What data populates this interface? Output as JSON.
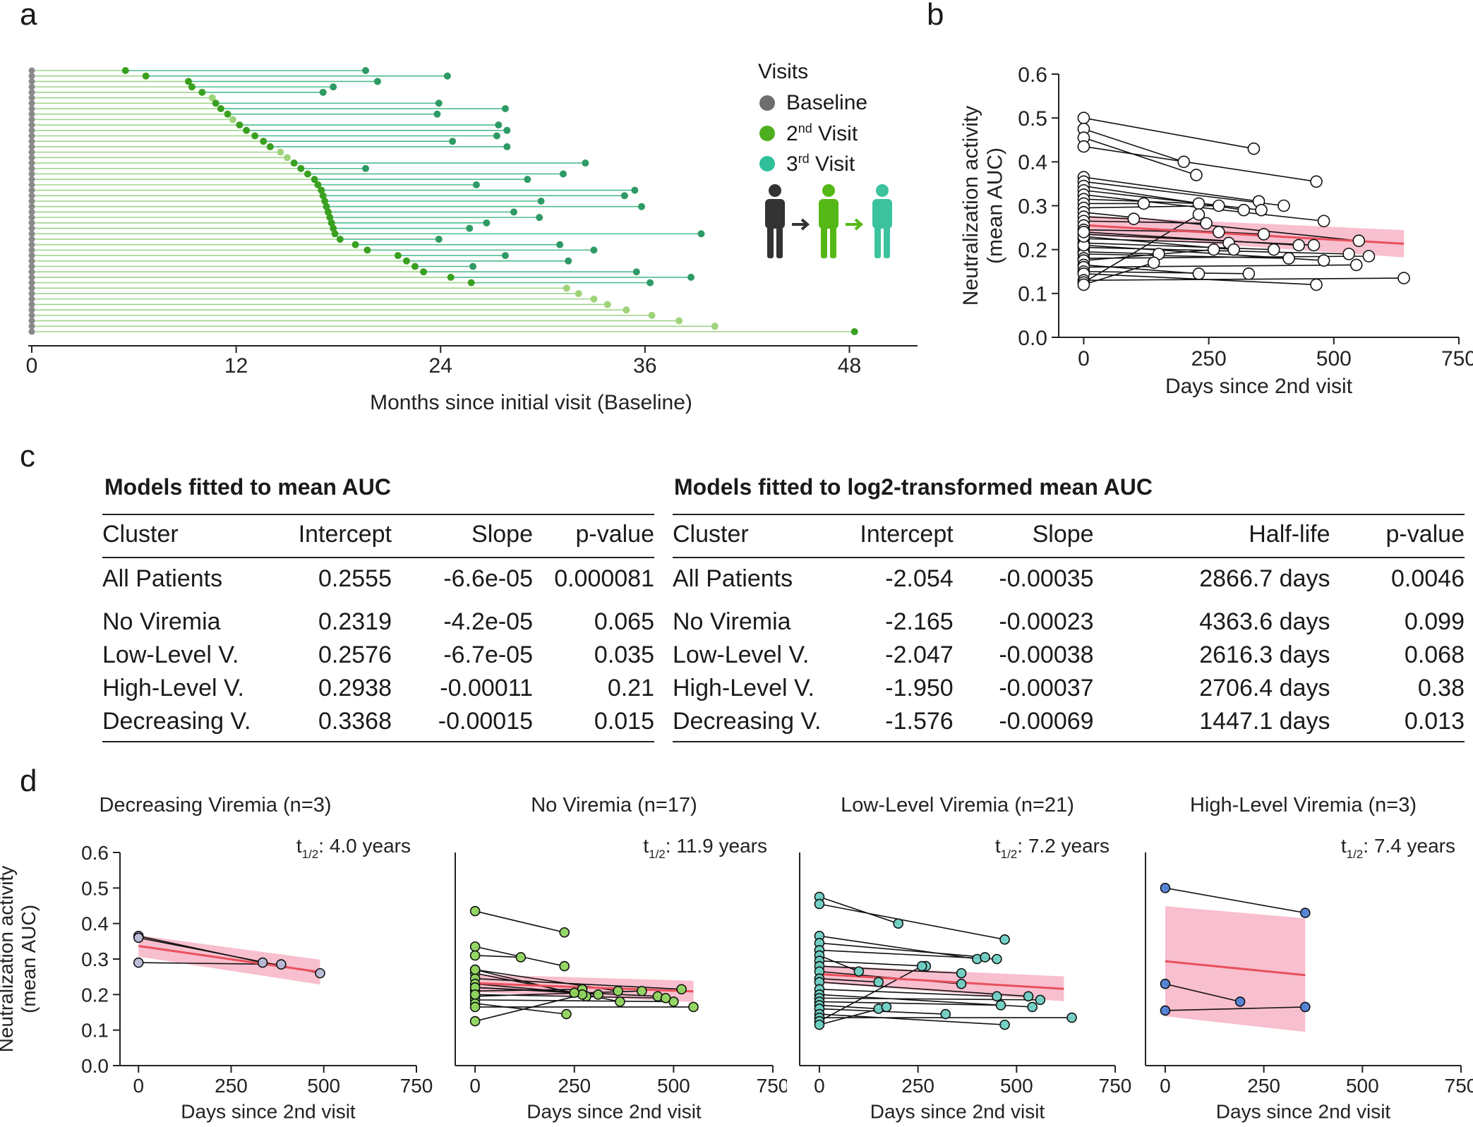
{
  "panel_letters": {
    "a": "a",
    "b": "b",
    "c": "c",
    "d": "d"
  },
  "legend": {
    "title": "Visits",
    "items": [
      {
        "label": "Baseline",
        "color": "#6e6e6e"
      },
      {
        "label": "2nd Visit",
        "color": "#4fae1f"
      },
      {
        "label": "3rd Visit",
        "color": "#2fc09a"
      }
    ]
  },
  "colors": {
    "baseline": "#8a8a8a",
    "second_visit": "#3aa020",
    "second_visit_light": "#9fd37a",
    "third_visit": "#2e9a64",
    "line_to_second": "#9fd48a",
    "line_to_third": "#4dbb8e",
    "fit_line": "#e8505b",
    "ci_band": "#f7b4c6",
    "group_decreasing": "#b9bcd8",
    "group_no_viremia": "#8fd65e",
    "group_low_level": "#6fd0c4",
    "group_high_level": "#4f7fd6"
  },
  "tables": {
    "left": {
      "title": "Models fitted to mean AUC",
      "headers": [
        "Cluster",
        "Intercept",
        "Slope",
        "p-value"
      ],
      "rows": [
        [
          "All Patients",
          "0.2555",
          "-6.6e-05",
          "0.000081"
        ],
        [
          "No Viremia",
          "0.2319",
          "-4.2e-05",
          "0.065"
        ],
        [
          "Low-Level V.",
          "0.2576",
          "-6.7e-05",
          "0.035"
        ],
        [
          "High-Level V.",
          "0.2938",
          "-0.00011",
          "0.21"
        ],
        [
          "Decreasing V.",
          "0.3368",
          "-0.00015",
          "0.015"
        ]
      ]
    },
    "right": {
      "title": "Models fitted to log2-transformed mean AUC",
      "headers": [
        "Cluster",
        "Intercept",
        "Slope",
        "Half-life",
        "p-value"
      ],
      "rows": [
        [
          "All Patients",
          "-2.054",
          "-0.00035",
          "2866.7 days",
          "0.0046"
        ],
        [
          "No Viremia",
          "-2.165",
          "-0.00023",
          "4363.6 days",
          "0.099"
        ],
        [
          "Low-Level V.",
          "-2.047",
          "-0.00038",
          "2616.3 days",
          "0.068"
        ],
        [
          "High-Level V.",
          "-1.950",
          "-0.00037",
          "2706.4 days",
          "0.38"
        ],
        [
          "Decreasing V.",
          "-1.576",
          "-0.00069",
          "1447.1 days",
          "0.013"
        ]
      ]
    }
  },
  "chart_data": [
    {
      "id": "a",
      "type": "timeline",
      "xlabel": "Months since initial visit (Baseline)",
      "xlim": [
        0,
        52
      ],
      "xticks": [
        0,
        12,
        24,
        36,
        48
      ],
      "patients": [
        {
          "v2": 5.5,
          "v3": 19.6
        },
        {
          "v2": 6.7,
          "v3": 24.4
        },
        {
          "v2": 9.2,
          "v3": 20.3
        },
        {
          "v2": 9.4,
          "v3": 17.7
        },
        {
          "v2": 10.0,
          "v3": 17.1
        },
        {
          "v2": 10.6,
          "v3": null
        },
        {
          "v2": 10.8,
          "v3": 23.9
        },
        {
          "v2": 11.1,
          "v3": 27.8
        },
        {
          "v2": 11.5,
          "v3": 23.8
        },
        {
          "v2": 11.8,
          "v3": null
        },
        {
          "v2": 12.2,
          "v3": 27.4
        },
        {
          "v2": 12.6,
          "v3": 27.9
        },
        {
          "v2": 13.1,
          "v3": 27.3
        },
        {
          "v2": 13.6,
          "v3": 24.7
        },
        {
          "v2": 14.0,
          "v3": 27.9
        },
        {
          "v2": 14.6,
          "v3": null
        },
        {
          "v2": 15.0,
          "v3": null
        },
        {
          "v2": 15.4,
          "v3": 32.5
        },
        {
          "v2": 15.8,
          "v3": 19.6
        },
        {
          "v2": 16.2,
          "v3": 31.2
        },
        {
          "v2": 16.6,
          "v3": 29.1
        },
        {
          "v2": 16.8,
          "v3": 26.1
        },
        {
          "v2": 17.0,
          "v3": 35.4
        },
        {
          "v2": 17.1,
          "v3": 34.8
        },
        {
          "v2": 17.2,
          "v3": 29.9
        },
        {
          "v2": 17.3,
          "v3": 35.8
        },
        {
          "v2": 17.4,
          "v3": 28.3
        },
        {
          "v2": 17.5,
          "v3": 29.8
        },
        {
          "v2": 17.6,
          "v3": 26.7
        },
        {
          "v2": 17.7,
          "v3": 25.7
        },
        {
          "v2": 17.8,
          "v3": 39.3
        },
        {
          "v2": 18.1,
          "v3": 23.9
        },
        {
          "v2": 19.0,
          "v3": 31.0
        },
        {
          "v2": 19.7,
          "v3": 33.0
        },
        {
          "v2": 21.5,
          "v3": 27.8
        },
        {
          "v2": 22.0,
          "v3": 31.5
        },
        {
          "v2": 22.5,
          "v3": 25.9
        },
        {
          "v2": 23.0,
          "v3": 35.5
        },
        {
          "v2": 24.6,
          "v3": 38.7
        },
        {
          "v2": 25.8,
          "v3": 36.3
        },
        {
          "v2": 31.4,
          "v3": null
        },
        {
          "v2": 32.1,
          "v3": null
        },
        {
          "v2": 33.0,
          "v3": null
        },
        {
          "v2": 33.8,
          "v3": null
        },
        {
          "v2": 34.9,
          "v3": null
        },
        {
          "v2": 36.4,
          "v3": null
        },
        {
          "v2": 38.0,
          "v3": null
        },
        {
          "v2": 40.1,
          "v3": null
        },
        {
          "v2": 48.3,
          "v3": null
        }
      ]
    },
    {
      "id": "b",
      "type": "scatter",
      "xlabel": "Days since 2nd visit",
      "ylabel": "Neutralization activity (mean AUC)",
      "xlim": [
        -50,
        750
      ],
      "ylim": [
        0.0,
        0.6
      ],
      "xticks": [
        0,
        250,
        500,
        750
      ],
      "yticks": [
        "0.0",
        "0.1",
        "0.2",
        "0.3",
        "0.4",
        "0.5",
        "0.6"
      ],
      "fit": {
        "intercept": 0.2555,
        "slope": -6.6e-05,
        "x_end": 640,
        "ci_start": 0.022,
        "ci_end": 0.031
      },
      "pairs": [
        [
          [
            0,
            0.5
          ],
          [
            340,
            0.43
          ]
        ],
        [
          [
            0,
            0.475
          ],
          [
            200,
            0.4
          ]
        ],
        [
          [
            0,
            0.455
          ],
          [
            225,
            0.37
          ]
        ],
        [
          [
            0,
            0.435
          ],
          [
            465,
            0.355
          ]
        ],
        [
          [
            0,
            0.365
          ],
          [
            350,
            0.31
          ]
        ],
        [
          [
            0,
            0.355
          ],
          [
            400,
            0.3
          ]
        ],
        [
          [
            0,
            0.345
          ],
          [
            320,
            0.29
          ]
        ],
        [
          [
            0,
            0.335
          ],
          [
            355,
            0.29
          ]
        ],
        [
          [
            0,
            0.325
          ],
          [
            480,
            0.265
          ]
        ],
        [
          [
            0,
            0.315
          ],
          [
            230,
            0.305
          ]
        ],
        [
          [
            0,
            0.305
          ],
          [
            120,
            0.305
          ]
        ],
        [
          [
            0,
            0.295
          ],
          [
            270,
            0.3
          ]
        ],
        [
          [
            0,
            0.285
          ],
          [
            550,
            0.22
          ]
        ],
        [
          [
            0,
            0.275
          ],
          [
            100,
            0.27
          ]
        ],
        [
          [
            0,
            0.265
          ],
          [
            245,
            0.26
          ]
        ],
        [
          [
            0,
            0.255
          ],
          [
            360,
            0.235
          ]
        ],
        [
          [
            0,
            0.245
          ],
          [
            270,
            0.24
          ]
        ],
        [
          [
            0,
            0.235
          ],
          [
            460,
            0.21
          ]
        ],
        [
          [
            0,
            0.225
          ],
          [
            290,
            0.215
          ]
        ],
        [
          [
            0,
            0.215
          ],
          [
            380,
            0.2
          ]
        ],
        [
          [
            0,
            0.205
          ],
          [
            530,
            0.19
          ]
        ],
        [
          [
            0,
            0.195
          ],
          [
            150,
            0.19
          ]
        ],
        [
          [
            0,
            0.19
          ],
          [
            410,
            0.18
          ]
        ],
        [
          [
            0,
            0.18
          ],
          [
            570,
            0.185
          ]
        ],
        [
          [
            0,
            0.175
          ],
          [
            260,
            0.2
          ]
        ],
        [
          [
            0,
            0.165
          ],
          [
            230,
            0.145
          ]
        ],
        [
          [
            0,
            0.16
          ],
          [
            545,
            0.165
          ]
        ],
        [
          [
            0,
            0.15
          ],
          [
            330,
            0.145
          ]
        ],
        [
          [
            0,
            0.145
          ],
          [
            465,
            0.12
          ]
        ],
        [
          [
            0,
            0.13
          ],
          [
            640,
            0.135
          ]
        ],
        [
          [
            0,
            0.125
          ],
          [
            230,
            0.28
          ]
        ],
        [
          [
            0,
            0.12
          ],
          [
            140,
            0.17
          ]
        ],
        [
          [
            0,
            0.21
          ],
          [
            480,
            0.175
          ]
        ],
        [
          [
            0,
            0.23
          ],
          [
            300,
            0.2
          ]
        ],
        [
          [
            0,
            0.24
          ],
          [
            430,
            0.21
          ]
        ]
      ]
    },
    {
      "id": "d1",
      "type": "scatter",
      "title": "Decreasing Viremia (n=3)",
      "annotation": "4.0 years",
      "group_color": "#b9bcd8",
      "xlim": [
        -50,
        750
      ],
      "ylim": [
        0.0,
        0.6
      ],
      "xticks": [
        0,
        250,
        500,
        750
      ],
      "yticks": [
        "0.0",
        "0.1",
        "0.2",
        "0.3",
        "0.4",
        "0.5",
        "0.6"
      ],
      "ylabel": "Neutralization activity (mean AUC)",
      "xlabel": "Days since 2nd visit",
      "fit": {
        "intercept": 0.3368,
        "slope": -0.00015,
        "x_end": 490,
        "ci_start": 0.03,
        "ci_end": 0.035
      },
      "pairs": [
        [
          [
            0,
            0.365
          ],
          [
            335,
            0.29
          ]
        ],
        [
          [
            0,
            0.29
          ],
          [
            385,
            0.285
          ]
        ],
        [
          [
            0,
            0.36
          ],
          [
            490,
            0.26
          ]
        ]
      ]
    },
    {
      "id": "d2",
      "type": "scatter",
      "title": "No Viremia (n=17)",
      "annotation": "11.9 years",
      "group_color": "#8fd65e",
      "xlim": [
        -50,
        750
      ],
      "ylim": [
        0.0,
        0.6
      ],
      "xticks": [
        0,
        250,
        500,
        750
      ],
      "xlabel": "Days since 2nd visit",
      "fit": {
        "intercept": 0.2319,
        "slope": -4.2e-05,
        "x_end": 550,
        "ci_start": 0.025,
        "ci_end": 0.03
      },
      "pairs": [
        [
          [
            0,
            0.435
          ],
          [
            225,
            0.375
          ]
        ],
        [
          [
            0,
            0.335
          ],
          [
            225,
            0.28
          ]
        ],
        [
          [
            0,
            0.31
          ],
          [
            115,
            0.305
          ]
        ],
        [
          [
            0,
            0.27
          ],
          [
            280,
            0.195
          ]
        ],
        [
          [
            0,
            0.26
          ],
          [
            365,
            0.18
          ]
        ],
        [
          [
            0,
            0.245
          ],
          [
            520,
            0.215
          ]
        ],
        [
          [
            0,
            0.23
          ],
          [
            310,
            0.2
          ]
        ],
        [
          [
            0,
            0.22
          ],
          [
            460,
            0.195
          ]
        ],
        [
          [
            0,
            0.21
          ],
          [
            270,
            0.215
          ]
        ],
        [
          [
            0,
            0.195
          ],
          [
            420,
            0.21
          ]
        ],
        [
          [
            0,
            0.185
          ],
          [
            500,
            0.18
          ]
        ],
        [
          [
            0,
            0.175
          ],
          [
            230,
            0.145
          ]
        ],
        [
          [
            0,
            0.165
          ],
          [
            550,
            0.165
          ]
        ],
        [
          [
            0,
            0.125
          ],
          [
            270,
            0.2
          ]
        ],
        [
          [
            0,
            0.27
          ],
          [
            360,
            0.21
          ]
        ],
        [
          [
            0,
            0.22
          ],
          [
            250,
            0.205
          ]
        ],
        [
          [
            0,
            0.2
          ],
          [
            480,
            0.19
          ]
        ]
      ]
    },
    {
      "id": "d3",
      "type": "scatter",
      "title": "Low-Level Viremia (n=21)",
      "annotation": "7.2 years",
      "group_color": "#6fd0c4",
      "xlim": [
        -50,
        750
      ],
      "ylim": [
        0.0,
        0.6
      ],
      "xticks": [
        0,
        250,
        500,
        750
      ],
      "xlabel": "Days since 2nd visit",
      "fit": {
        "intercept": 0.2576,
        "slope": -6.7e-05,
        "x_end": 620,
        "ci_start": 0.025,
        "ci_end": 0.035
      },
      "pairs": [
        [
          [
            0,
            0.475
          ],
          [
            200,
            0.4
          ]
        ],
        [
          [
            0,
            0.455
          ],
          [
            470,
            0.355
          ]
        ],
        [
          [
            0,
            0.365
          ],
          [
            400,
            0.3
          ]
        ],
        [
          [
            0,
            0.345
          ],
          [
            420,
            0.305
          ]
        ],
        [
          [
            0,
            0.325
          ],
          [
            450,
            0.3
          ]
        ],
        [
          [
            0,
            0.31
          ],
          [
            100,
            0.265
          ]
        ],
        [
          [
            0,
            0.295
          ],
          [
            270,
            0.28
          ]
        ],
        [
          [
            0,
            0.28
          ],
          [
            360,
            0.26
          ]
        ],
        [
          [
            0,
            0.265
          ],
          [
            360,
            0.23
          ]
        ],
        [
          [
            0,
            0.245
          ],
          [
            150,
            0.235
          ]
        ],
        [
          [
            0,
            0.235
          ],
          [
            530,
            0.195
          ]
        ],
        [
          [
            0,
            0.215
          ],
          [
            450,
            0.195
          ]
        ],
        [
          [
            0,
            0.2
          ],
          [
            540,
            0.165
          ]
        ],
        [
          [
            0,
            0.19
          ],
          [
            560,
            0.185
          ]
        ],
        [
          [
            0,
            0.18
          ],
          [
            460,
            0.17
          ]
        ],
        [
          [
            0,
            0.17
          ],
          [
            150,
            0.16
          ]
        ],
        [
          [
            0,
            0.16
          ],
          [
            320,
            0.145
          ]
        ],
        [
          [
            0,
            0.145
          ],
          [
            470,
            0.115
          ]
        ],
        [
          [
            0,
            0.135
          ],
          [
            640,
            0.135
          ]
        ],
        [
          [
            0,
            0.125
          ],
          [
            260,
            0.28
          ]
        ],
        [
          [
            0,
            0.115
          ],
          [
            170,
            0.165
          ]
        ]
      ]
    },
    {
      "id": "d4",
      "type": "scatter",
      "title": "High-Level Viremia (n=3)",
      "annotation": "7.4 years",
      "group_color": "#4f7fd6",
      "xlim": [
        -50,
        750
      ],
      "ylim": [
        0.0,
        0.6
      ],
      "xticks": [
        0,
        250,
        500,
        750
      ],
      "xlabel": "Days since 2nd visit",
      "fit": {
        "intercept": 0.2938,
        "slope": -0.00011,
        "x_end": 355,
        "ci_start": 0.155,
        "ci_end": 0.16
      },
      "pairs": [
        [
          [
            0,
            0.5
          ],
          [
            355,
            0.43
          ]
        ],
        [
          [
            0,
            0.23
          ],
          [
            190,
            0.18
          ]
        ],
        [
          [
            0,
            0.155
          ],
          [
            355,
            0.165
          ]
        ]
      ]
    }
  ]
}
